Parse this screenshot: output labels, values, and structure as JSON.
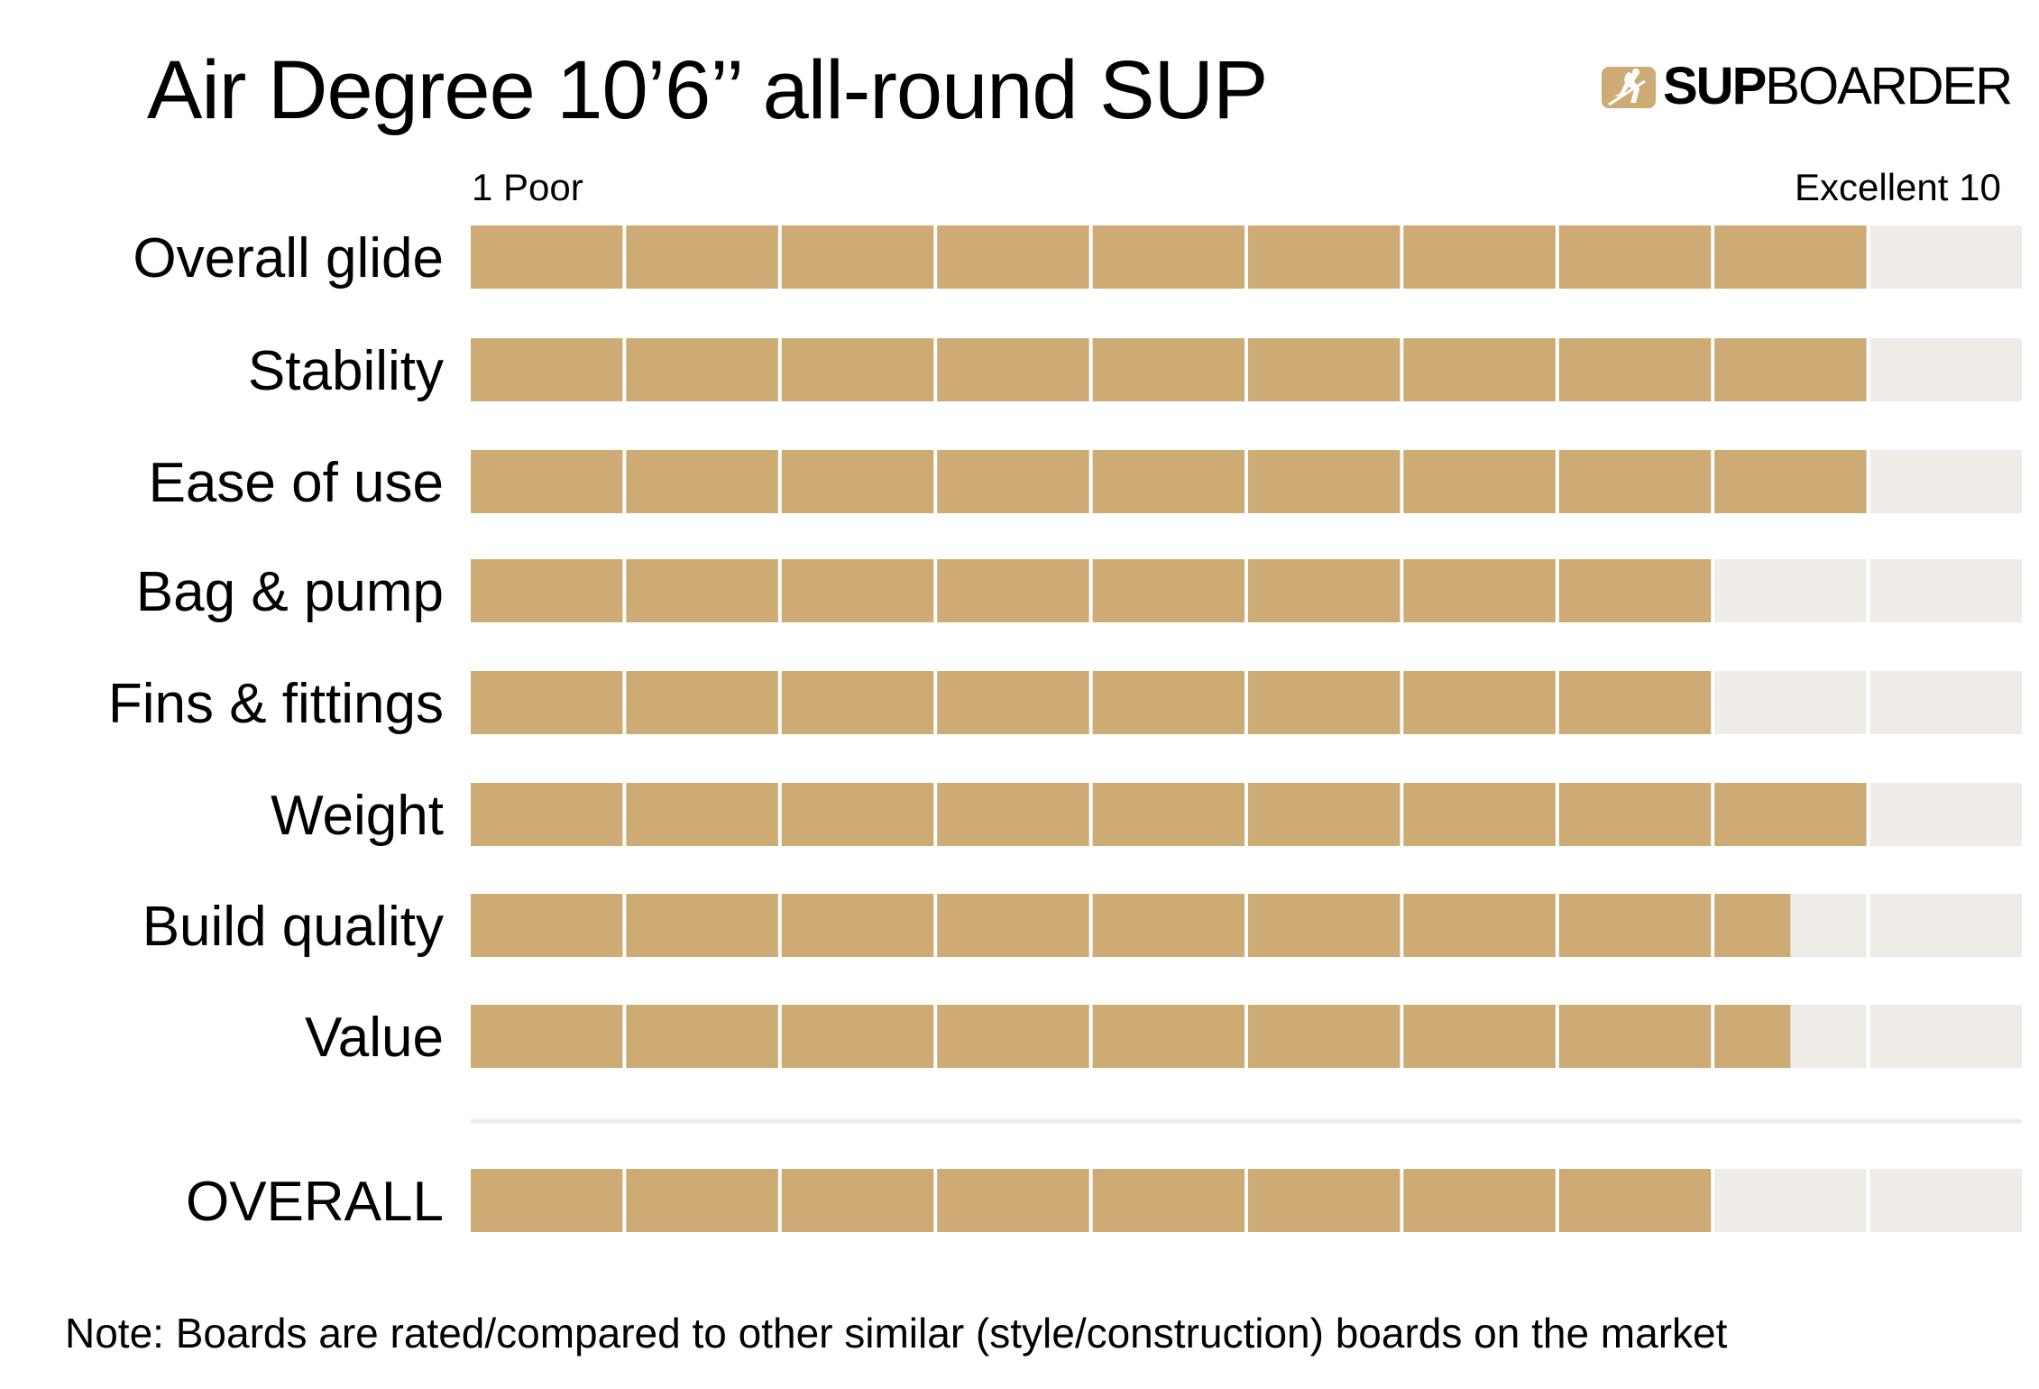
{
  "chart_data": {
    "type": "bar",
    "title": "Air Degree 10’6’’ all-round SUP",
    "scale": {
      "min_label": "1 Poor",
      "max_label": "Excellent 10",
      "min": 0,
      "max": 10
    },
    "categories": [
      "Overall glide",
      "Stability",
      "Ease of use",
      "Bag & pump",
      "Fins & fittings",
      "Weight",
      "Build quality",
      "Value",
      "OVERALL"
    ],
    "values": [
      9,
      9,
      9,
      8,
      8,
      9,
      8.5,
      8.5,
      8
    ],
    "colors": {
      "filled": "#CEAA74",
      "empty": "#EFECE8",
      "divider": "#EFECE8"
    }
  },
  "logo": {
    "bold": "SUP",
    "light": "BOARDER",
    "icon": "paddler-icon",
    "color": "#CEAA74"
  },
  "footnote": "Note: Boards are rated/compared to other similar (style/construction) boards on the market"
}
